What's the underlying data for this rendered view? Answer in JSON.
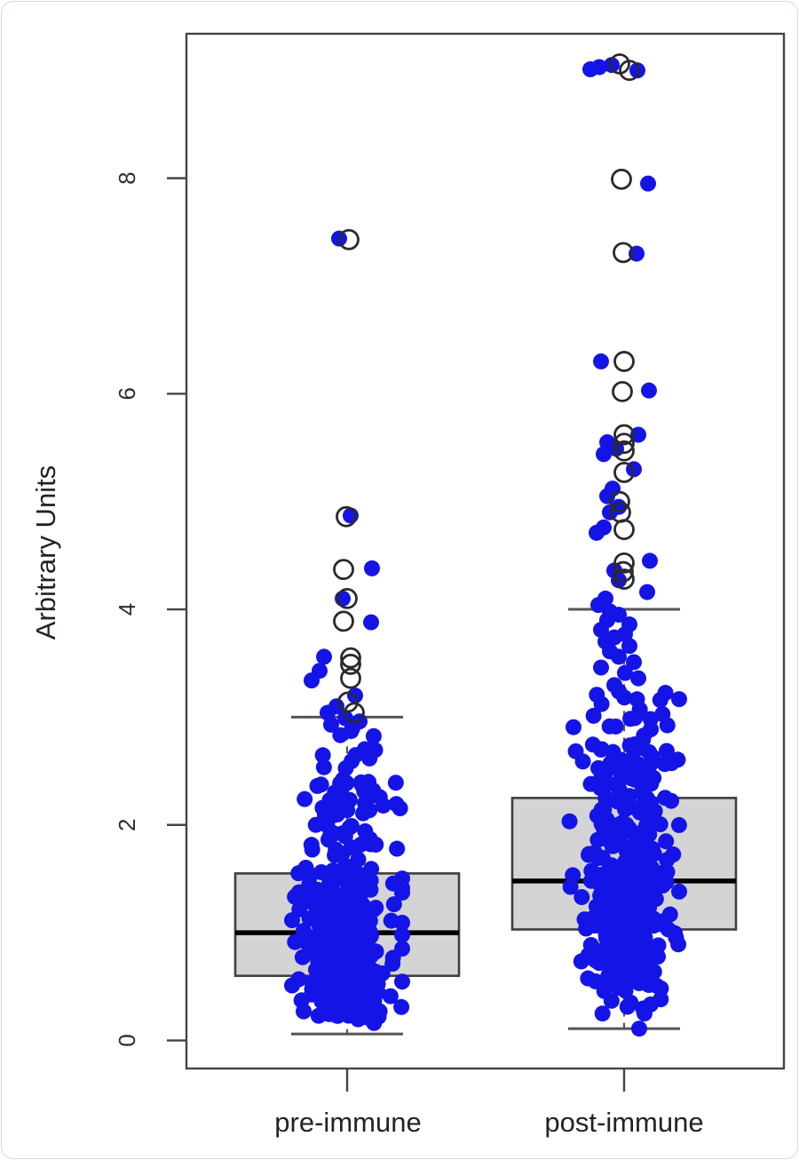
{
  "chart_data": {
    "type": "boxplot",
    "title": "",
    "ylabel": "Arbitrary Units",
    "xlabel": "",
    "categories": [
      "pre-immune",
      "post-immune"
    ],
    "yticks": [
      0,
      2,
      4,
      6,
      8
    ],
    "ylim": [
      -0.26,
      9.34
    ],
    "grid": false,
    "legend": "none",
    "colors": {
      "point_blue": "#1414e6",
      "box_fill": "#d4d4d4",
      "box_stroke": "#3f3f3f",
      "median": "#000000",
      "whisker": "#555555",
      "outlier_stroke": "#2a2a2a",
      "axis": "#454545"
    },
    "groups": [
      {
        "label": "pre-immune",
        "box": {
          "q1": 0.6,
          "median": 1.0,
          "q3": 1.55,
          "whisker_low": 0.06,
          "whisker_high": 3.0
        },
        "outliers_open": [
          [
            7.43,
            2
          ],
          [
            4.86,
            -1
          ],
          [
            4.37,
            -4
          ],
          [
            4.1,
            0
          ],
          [
            3.89,
            -4
          ],
          [
            3.55,
            4
          ],
          [
            3.49,
            4
          ],
          [
            3.36,
            4
          ],
          [
            3.14,
            1
          ],
          [
            3.04,
            8
          ]
        ],
        "tail_points": [
          [
            7.44,
            -9
          ],
          [
            4.87,
            4
          ],
          [
            4.38,
            28
          ],
          [
            4.1,
            -5
          ],
          [
            3.88,
            27
          ],
          [
            3.56,
            -26
          ],
          [
            3.43,
            -31
          ],
          [
            3.34,
            -40
          ],
          [
            3.2,
            9
          ],
          [
            3.1,
            -12
          ],
          [
            3.04,
            -22
          ],
          [
            2.99,
            -2
          ],
          [
            2.96,
            14
          ],
          [
            2.93,
            -18
          ],
          [
            2.9,
            6
          ]
        ],
        "cloud": {
          "n": 370,
          "log_mu": 0.0,
          "log_sigma": 0.7,
          "min": 0.04,
          "max": 2.88,
          "seed": 7
        }
      },
      {
        "label": "post-immune",
        "box": {
          "q1": 1.03,
          "median": 1.48,
          "q3": 2.25,
          "whisker_low": 0.11,
          "whisker_high": 4.0
        },
        "outliers_open": [
          [
            9.06,
            -5
          ],
          [
            9.0,
            6
          ],
          [
            7.99,
            -3
          ],
          [
            7.31,
            -1
          ],
          [
            6.3,
            0
          ],
          [
            6.02,
            -2
          ],
          [
            5.62,
            0
          ],
          [
            5.54,
            0
          ],
          [
            5.47,
            0
          ],
          [
            5.27,
            0
          ],
          [
            5.0,
            -5
          ],
          [
            4.9,
            -4
          ],
          [
            4.74,
            0
          ],
          [
            4.43,
            0
          ],
          [
            4.35,
            -1
          ],
          [
            4.28,
            0
          ]
        ],
        "tail_points": [
          [
            9.03,
            -28
          ],
          [
            9.01,
            -38
          ],
          [
            9.05,
            -14
          ],
          [
            9.0,
            15
          ],
          [
            7.95,
            27
          ],
          [
            7.3,
            14
          ],
          [
            6.3,
            -26
          ],
          [
            6.03,
            28
          ],
          [
            5.62,
            16
          ],
          [
            5.55,
            -19
          ],
          [
            5.49,
            -9
          ],
          [
            5.44,
            -23
          ],
          [
            5.3,
            11
          ],
          [
            5.12,
            -13
          ],
          [
            5.05,
            -19
          ],
          [
            4.95,
            -6
          ],
          [
            4.9,
            -16
          ],
          [
            4.76,
            -23
          ],
          [
            4.71,
            -31
          ],
          [
            4.45,
            29
          ],
          [
            4.36,
            -11
          ],
          [
            4.27,
            -6
          ],
          [
            4.16,
            26
          ],
          [
            4.1,
            -21
          ],
          [
            4.04,
            -29
          ],
          [
            3.98,
            -16
          ],
          [
            3.95,
            -6
          ],
          [
            3.9,
            -19
          ],
          [
            3.86,
            6
          ],
          [
            3.81,
            -26
          ],
          [
            3.77,
            1
          ],
          [
            3.74,
            -11
          ],
          [
            3.7,
            -21
          ],
          [
            3.66,
            6
          ],
          [
            3.61,
            -16
          ],
          [
            3.56,
            -6
          ],
          [
            3.51,
            11
          ],
          [
            3.46,
            -26
          ],
          [
            3.41,
            1
          ],
          [
            3.36,
            16
          ],
          [
            0.11,
            17
          ]
        ],
        "cloud": {
          "n": 380,
          "log_mu": 0.39,
          "log_sigma": 0.58,
          "min": 0.13,
          "max": 3.32,
          "seed": 13
        }
      }
    ]
  }
}
